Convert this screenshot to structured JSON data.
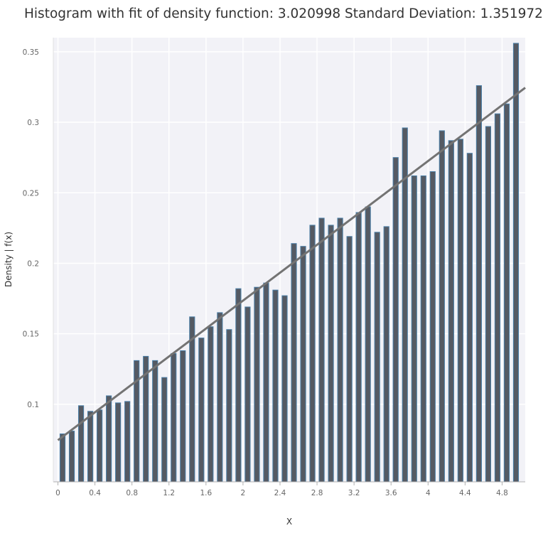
{
  "title": "Histogram with fit of density function: 3.020998 Standard Deviation: 1.351972",
  "chart_data": {
    "type": "bar",
    "xlabel": "X",
    "ylabel": "Density | f(x)",
    "xlim": [
      -0.05,
      5.05
    ],
    "ylim": [
      0.045,
      0.36
    ],
    "grid": true,
    "bin_width": 0.1,
    "x_ticks": [
      "0",
      "0.4",
      "0.8",
      "1.2",
      "1.6",
      "2",
      "2.4",
      "2.8",
      "3.2",
      "3.6",
      "4",
      "4.4",
      "4.8"
    ],
    "x_tick_values": [
      0,
      0.4,
      0.8,
      1.2,
      1.6,
      2,
      2.4,
      2.8,
      3.2,
      3.6,
      4,
      4.4,
      4.8
    ],
    "y_ticks": [
      "0.1",
      "0.15",
      "0.2",
      "0.25",
      "0.3",
      "0.35"
    ],
    "y_tick_values": [
      0.1,
      0.15,
      0.2,
      0.25,
      0.3,
      0.35
    ],
    "x": [
      0.05,
      0.15,
      0.25,
      0.35,
      0.45,
      0.55,
      0.65,
      0.75,
      0.85,
      0.95,
      1.05,
      1.15,
      1.25,
      1.35,
      1.45,
      1.55,
      1.65,
      1.75,
      1.85,
      1.95,
      2.05,
      2.15,
      2.25,
      2.35,
      2.45,
      2.55,
      2.65,
      2.75,
      2.85,
      2.95,
      3.05,
      3.15,
      3.25,
      3.35,
      3.45,
      3.55,
      3.65,
      3.75,
      3.85,
      3.95,
      4.05,
      4.15,
      4.25,
      4.35,
      4.45,
      4.55,
      4.65,
      4.75,
      4.85,
      4.95
    ],
    "values": [
      0.079,
      0.081,
      0.099,
      0.095,
      0.096,
      0.106,
      0.101,
      0.102,
      0.131,
      0.134,
      0.131,
      0.119,
      0.136,
      0.138,
      0.162,
      0.147,
      0.155,
      0.165,
      0.153,
      0.182,
      0.169,
      0.183,
      0.186,
      0.181,
      0.177,
      0.214,
      0.212,
      0.227,
      0.232,
      0.227,
      0.232,
      0.219,
      0.236,
      0.24,
      0.222,
      0.226,
      0.275,
      0.296,
      0.262,
      0.262,
      0.265,
      0.294,
      0.287,
      0.288,
      0.278,
      0.326,
      0.297,
      0.306,
      0.313,
      0.356
    ],
    "fit_line": {
      "x": [
        0,
        5.05
      ],
      "y": [
        0.0745,
        0.3245
      ]
    },
    "colors": {
      "bar_fill": "#555a63",
      "bar_edge": "#4a7ea6",
      "fit_line": "#737373",
      "plot_bg": "#f2f2f7",
      "grid": "#ffffff"
    }
  }
}
